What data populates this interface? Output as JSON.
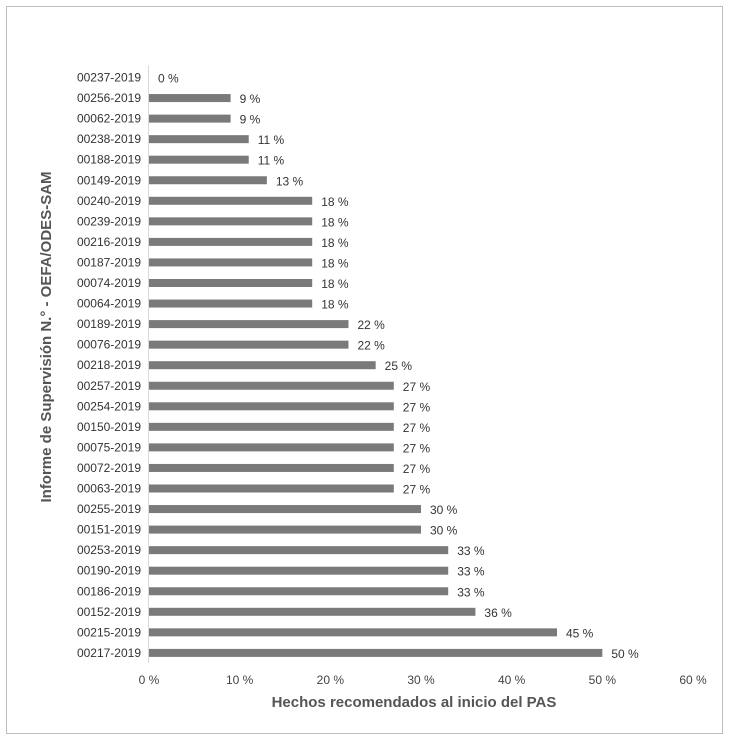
{
  "chart_data": {
    "type": "bar",
    "orientation": "horizontal",
    "categories": [
      "00237-2019",
      "00256-2019",
      "00062-2019",
      "00238-2019",
      "00188-2019",
      "00149-2019",
      "00240-2019",
      "00239-2019",
      "00216-2019",
      "00187-2019",
      "00074-2019",
      "00064-2019",
      "00189-2019",
      "00076-2019",
      "00218-2019",
      "00257-2019",
      "00254-2019",
      "00150-2019",
      "00075-2019",
      "00072-2019",
      "00063-2019",
      "00255-2019",
      "00151-2019",
      "00253-2019",
      "00190-2019",
      "00186-2019",
      "00152-2019",
      "00215-2019",
      "00217-2019"
    ],
    "values": [
      0,
      9,
      9,
      11,
      11,
      13,
      18,
      18,
      18,
      18,
      18,
      18,
      22,
      22,
      25,
      27,
      27,
      27,
      27,
      27,
      27,
      30,
      30,
      33,
      33,
      33,
      36,
      45,
      50
    ],
    "value_labels": [
      "0 %",
      "9 %",
      "9 %",
      "11 %",
      "11 %",
      "13 %",
      "18 %",
      "18 %",
      "18 %",
      "18 %",
      "18 %",
      "18 %",
      "22 %",
      "22 %",
      "25 %",
      "27 %",
      "27 %",
      "27 %",
      "27 %",
      "27 %",
      "27 %",
      "30 %",
      "30 %",
      "33 %",
      "33 %",
      "33 %",
      "36 %",
      "45 %",
      "50 %"
    ],
    "xlabel": "Hechos recomendados al inicio del PAS",
    "ylabel": "Informe de Supervisión N.° - OEFA/ODES-SAM",
    "xlim": [
      0,
      60
    ],
    "xticks": [
      0,
      10,
      20,
      30,
      40,
      50,
      60
    ],
    "xtick_labels": [
      "0 %",
      "10 %",
      "20 %",
      "30 %",
      "40 %",
      "50 %",
      "60 %"
    ],
    "bar_color": "#7a7a7a",
    "grid": false,
    "legend": "none"
  }
}
